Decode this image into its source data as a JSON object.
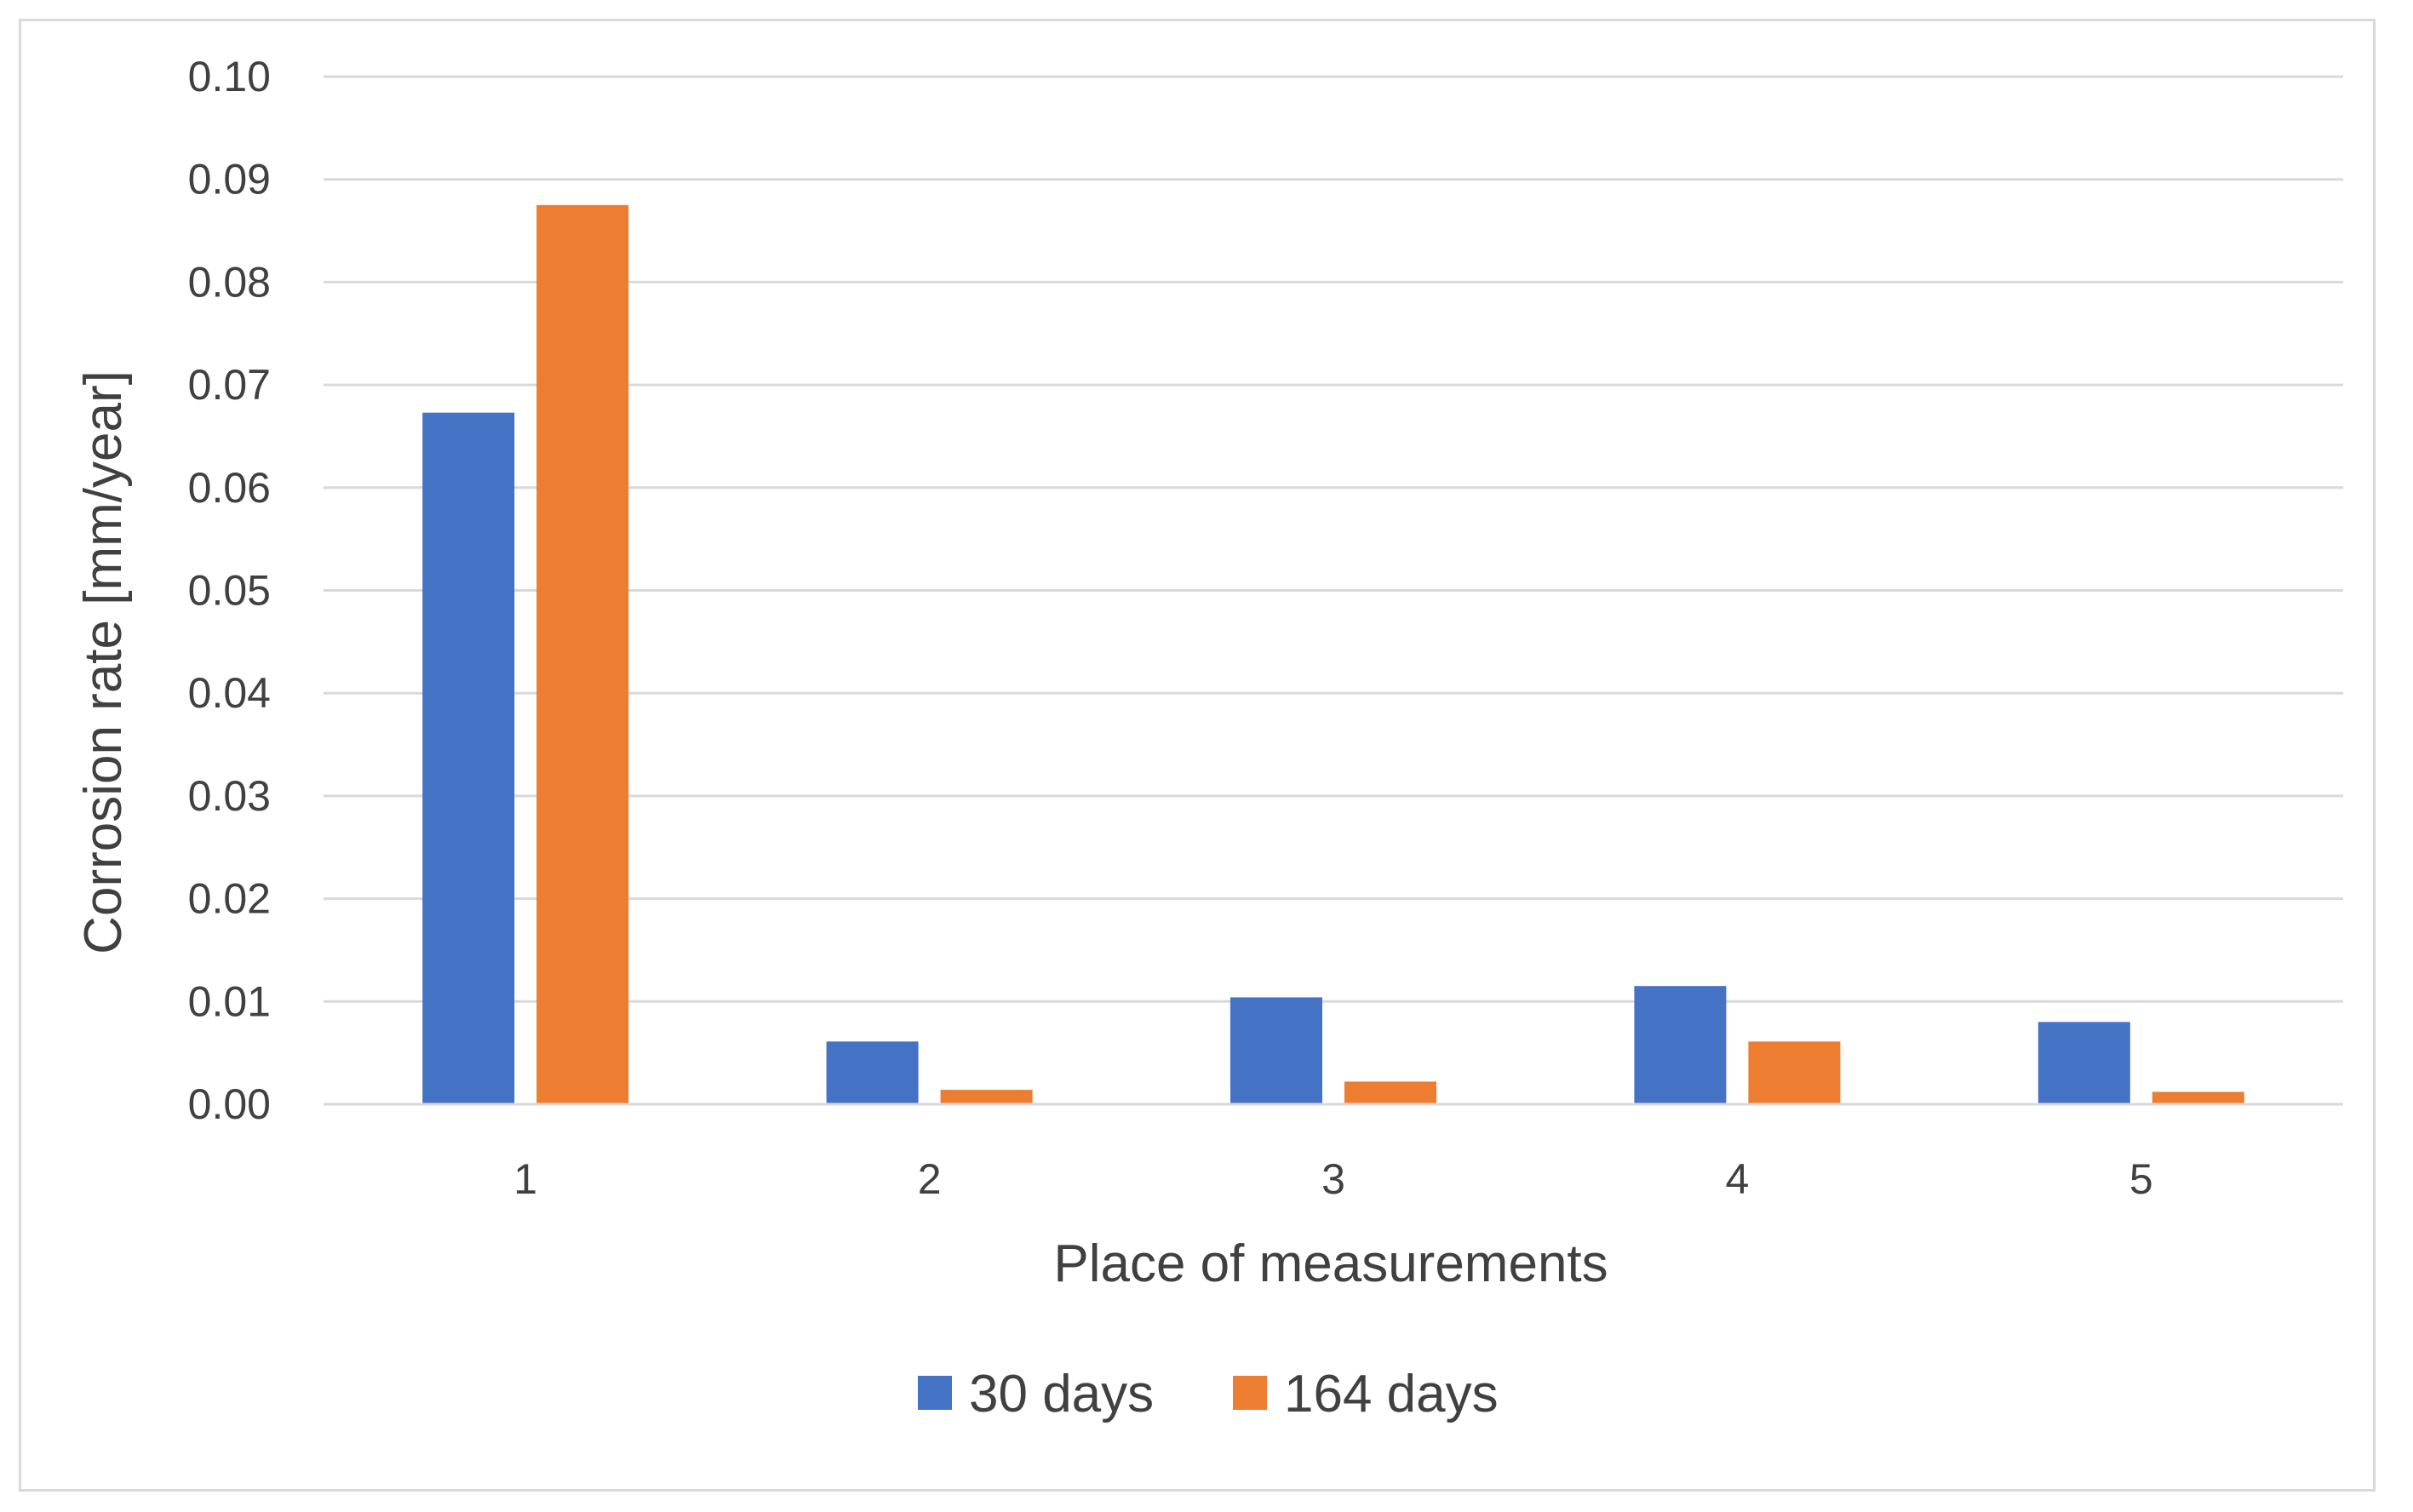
{
  "chart_data": {
    "type": "bar",
    "title": "",
    "xlabel": "Place of measurements",
    "ylabel": "Corrosion rate [mm/year]",
    "ylim": [
      0,
      0.1
    ],
    "yticks": [
      "0.00",
      "0.01",
      "0.02",
      "0.03",
      "0.04",
      "0.05",
      "0.06",
      "0.07",
      "0.08",
      "0.09",
      "0.10"
    ],
    "categories": [
      "1",
      "2",
      "3",
      "4",
      "5"
    ],
    "grid": true,
    "legend_position": "bottom",
    "series": [
      {
        "name": "30 days",
        "color": "#4472c4",
        "values": [
          0.0673,
          0.0061,
          0.0104,
          0.0115,
          0.008
        ]
      },
      {
        "name": "164 days",
        "color": "#ed7d31",
        "values": [
          0.0875,
          0.0014,
          0.0022,
          0.0061,
          0.0012
        ]
      }
    ]
  }
}
